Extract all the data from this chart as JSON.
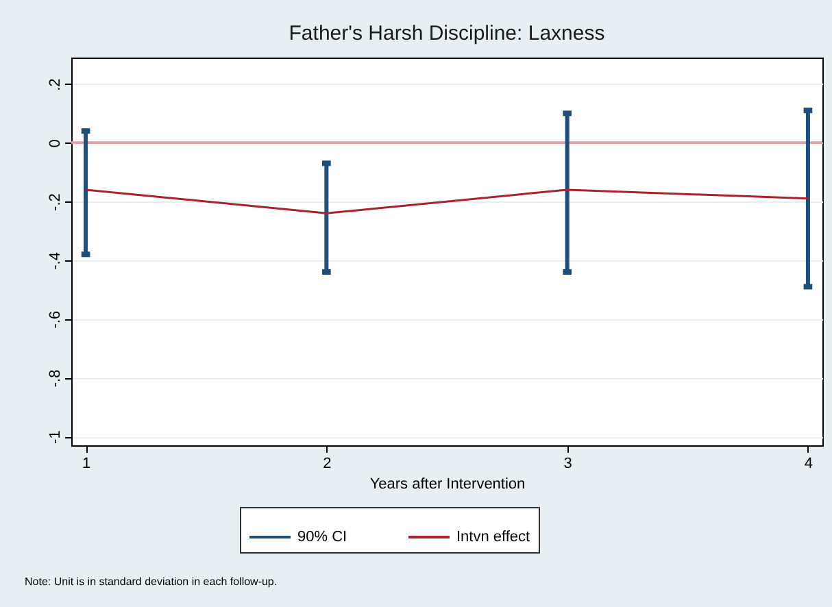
{
  "chart_data": {
    "type": "line",
    "title": "Father's Harsh Discipline: Laxness",
    "xlabel": "Years after Intervention",
    "x": [
      1,
      2,
      3,
      4
    ],
    "series": [
      {
        "name": "Intvn effect",
        "color": "#a8232f",
        "values": [
          -0.16,
          -0.24,
          -0.16,
          -0.19
        ],
        "errors": [
          [
            -0.38,
            0.04
          ],
          [
            -0.44,
            -0.07
          ],
          [
            -0.44,
            0.1
          ],
          [
            -0.49,
            0.11
          ]
        ]
      }
    ],
    "xlim": [
      0.94,
      4.06
    ],
    "xticks": [
      1,
      2,
      3,
      4
    ],
    "ylim": [
      -1.03,
      0.29
    ],
    "yticks": [
      {
        "value": 0.2,
        "label": ".2"
      },
      {
        "value": 0,
        "label": "0"
      },
      {
        "value": -0.2,
        "label": "-.2"
      },
      {
        "value": -0.4,
        "label": "-.4"
      },
      {
        "value": -0.6,
        "label": "-.6"
      },
      {
        "value": -0.8,
        "label": "-.8"
      },
      {
        "value": -1,
        "label": "-1"
      }
    ],
    "ref_lines": [
      {
        "axis": "y",
        "value": 0,
        "color": "#d9a3aa"
      }
    ],
    "grid": "y",
    "legend": "bottom",
    "marker": "none",
    "line_style": "solid",
    "annotations": [
      {
        "text": "90% CI"
      },
      "Note: Unit is in standard deviation in each follow-up."
    ]
  }
}
